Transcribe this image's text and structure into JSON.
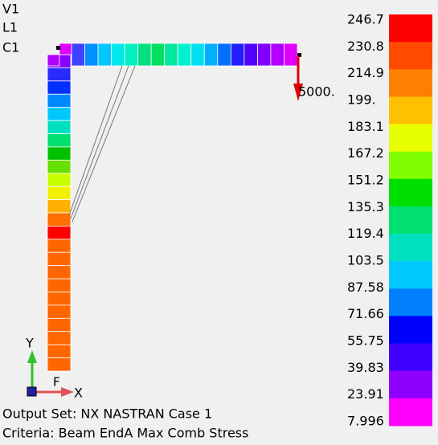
{
  "view_labels": [
    "V1",
    "L1",
    "C1"
  ],
  "legend": {
    "labels": [
      "246.7",
      "230.8",
      "214.9",
      "199.",
      "183.1",
      "167.2",
      "151.2",
      "135.3",
      "119.4",
      "103.5",
      "87.58",
      "71.66",
      "55.75",
      "39.83",
      "23.91",
      "7.996"
    ]
  },
  "load_label": "5000.",
  "triad": {
    "y": "Y",
    "f": "F",
    "x": "X"
  },
  "footer": {
    "output_set": "Output Set: NX NASTRAN Case 1",
    "criteria": "Criteria: Beam EndA Max Comb Stress"
  }
}
